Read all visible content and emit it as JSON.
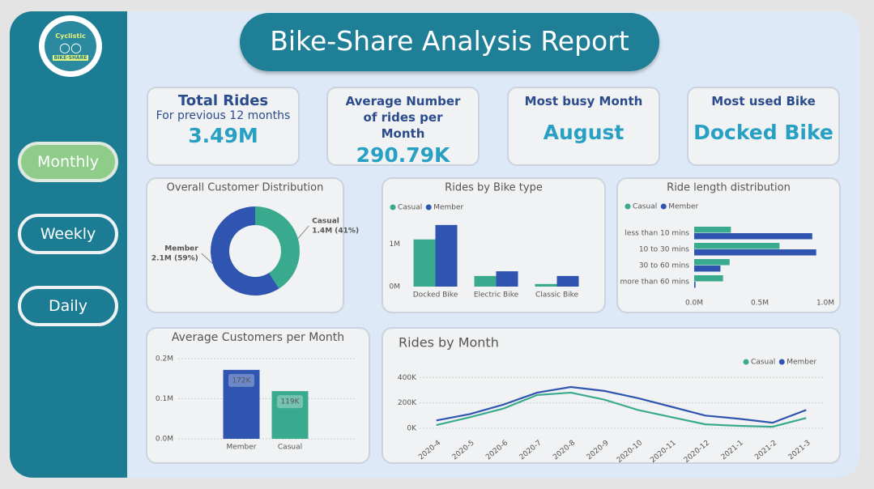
{
  "sidebar": {
    "logo": {
      "top": "Cyclistic",
      "bottom": "BIKE-SHARE"
    },
    "buttons": [
      "Monthly",
      "Weekly",
      "Daily"
    ]
  },
  "header": {
    "title": "Bike-Share Analysis Report"
  },
  "kpis": [
    {
      "title": "Total Rides",
      "subtitle": "For previous 12 months",
      "value": "3.49M"
    },
    {
      "title": "Average Number of rides per Month",
      "value": "290.79K"
    },
    {
      "title": "Most busy Month",
      "value": "August"
    },
    {
      "title": "Most used Bike",
      "value": "Docked Bike"
    }
  ],
  "chart_data": [
    {
      "type": "pie",
      "title": "Overall Customer Distribution",
      "donut": true,
      "categories": [
        "Casual",
        "Member"
      ],
      "values": [
        41,
        59
      ],
      "value_labels": [
        "1.4M (41%)",
        "2.1M (59%)"
      ],
      "colors": [
        "#3aaa8f",
        "#2f55b0"
      ]
    },
    {
      "type": "bar",
      "title": "Rides by Bike type",
      "categories": [
        "Docked Bike",
        "Electric Bike",
        "Classic Bike"
      ],
      "series": [
        {
          "name": "Casual",
          "color": "#3aaa8f",
          "values": [
            1110000,
            250000,
            60000
          ]
        },
        {
          "name": "Member",
          "color": "#2f55b0",
          "values": [
            1450000,
            360000,
            250000
          ]
        }
      ],
      "ylim": [
        0,
        1600000
      ],
      "yticks": [
        {
          "value": 0,
          "label": "0M"
        },
        {
          "value": 1000000,
          "label": "1M"
        }
      ],
      "legend": "top-left"
    },
    {
      "type": "bar",
      "orientation": "horizontal",
      "title": "Ride length distribution",
      "categories": [
        "less than 10 mins",
        "10 to 30 mins",
        "30 to 60 mins",
        "more than 60 mins"
      ],
      "series": [
        {
          "name": "Casual",
          "color": "#3aaa8f",
          "values": [
            280000,
            650000,
            270000,
            220000
          ]
        },
        {
          "name": "Member",
          "color": "#2f55b0",
          "values": [
            900000,
            930000,
            200000,
            10000
          ]
        }
      ],
      "xlim": [
        0,
        1000000
      ],
      "xticks": [
        {
          "value": 0,
          "label": "0.0M"
        },
        {
          "value": 500000,
          "label": "0.5M"
        },
        {
          "value": 1000000,
          "label": "1.0M"
        }
      ],
      "legend": "top-left"
    },
    {
      "type": "bar",
      "title": "Average Customers per Month",
      "categories": [
        "Member",
        "Casual"
      ],
      "values": [
        172000,
        119000
      ],
      "value_labels": [
        "172K",
        "119K"
      ],
      "colors": [
        "#2f55b0",
        "#3aaa8f"
      ],
      "ylim": [
        0,
        200000
      ],
      "yticks": [
        {
          "value": 0,
          "label": "0.0M"
        },
        {
          "value": 100000,
          "label": "0.1M"
        },
        {
          "value": 200000,
          "label": "0.2M"
        }
      ],
      "grid": true
    },
    {
      "type": "line",
      "title": "Rides by Month",
      "categories": [
        "2020-4",
        "2020-5",
        "2020-6",
        "2020-7",
        "2020-8",
        "2020-9",
        "2020-10",
        "2020-11",
        "2020-12",
        "2021-1",
        "2021-2",
        "2021-3"
      ],
      "series": [
        {
          "name": "Casual",
          "color": "#3aaa8f",
          "values": [
            25000,
            87000,
            156000,
            262000,
            281000,
            225000,
            144000,
            87000,
            31000,
            19000,
            12000,
            81000
          ]
        },
        {
          "name": "Member",
          "color": "#2f55b0",
          "values": [
            62000,
            112000,
            187000,
            281000,
            325000,
            294000,
            237000,
            169000,
            100000,
            75000,
            44000,
            144000
          ]
        }
      ],
      "ylim": [
        0,
        440000
      ],
      "yticks": [
        {
          "value": 0,
          "label": "0K"
        },
        {
          "value": 200000,
          "label": "200K"
        },
        {
          "value": 400000,
          "label": "400K"
        }
      ],
      "grid": true,
      "legend": "top-right"
    }
  ]
}
